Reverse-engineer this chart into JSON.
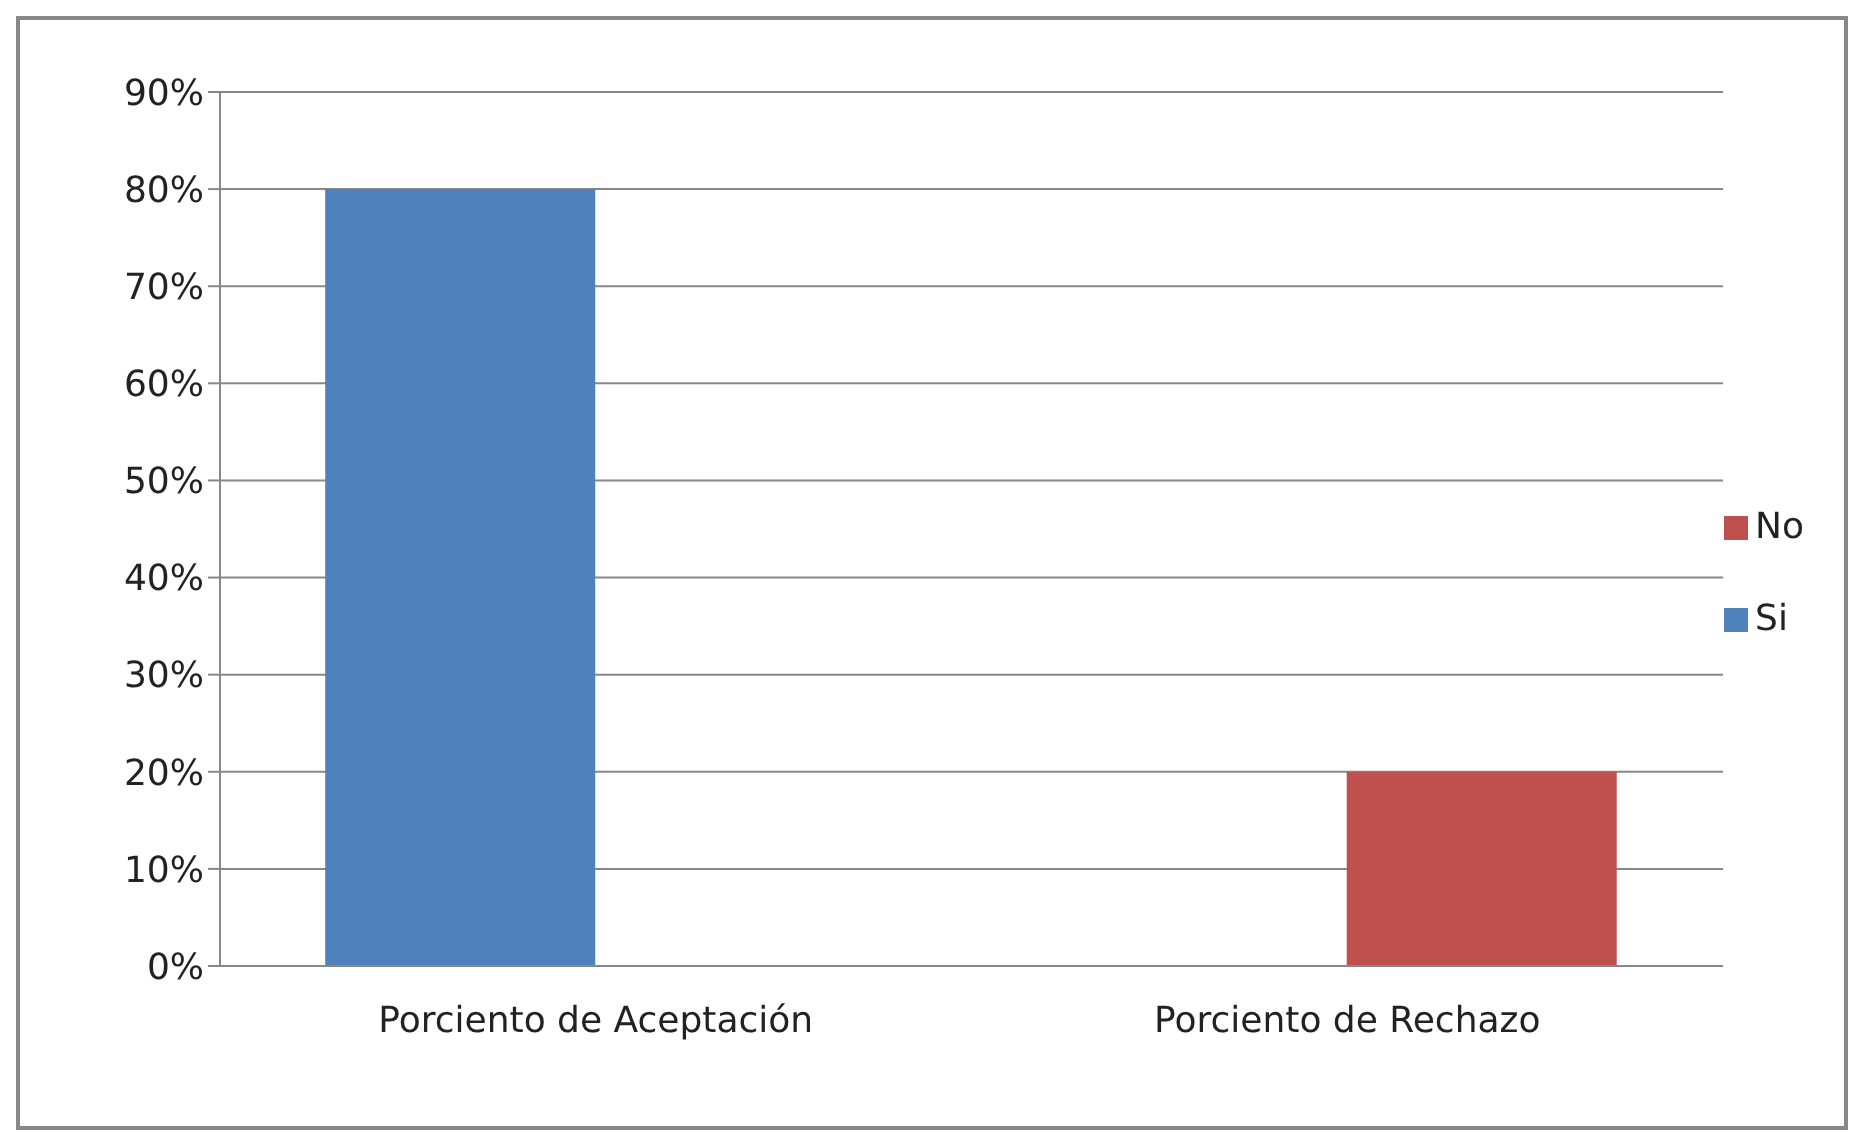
{
  "chart_data": {
    "type": "bar",
    "categories": [
      "Porciento de Aceptación",
      "Porciento de Rechazo"
    ],
    "series": [
      {
        "name": "Si",
        "color": "#4f81bd",
        "values": [
          80,
          null
        ]
      },
      {
        "name": "No",
        "color": "#c0504d",
        "values": [
          null,
          20
        ]
      }
    ],
    "ylim": [
      0,
      90
    ],
    "yticks": [
      {
        "value": 0,
        "label": "0%"
      },
      {
        "value": 10,
        "label": "10%"
      },
      {
        "value": 20,
        "label": "20%"
      },
      {
        "value": 30,
        "label": "30%"
      },
      {
        "value": 40,
        "label": "40%"
      },
      {
        "value": 50,
        "label": "50%"
      },
      {
        "value": 60,
        "label": "60%"
      },
      {
        "value": 70,
        "label": "70%"
      },
      {
        "value": 80,
        "label": "80%"
      },
      {
        "value": 90,
        "label": "90%"
      }
    ],
    "grid": "y",
    "legend": "right"
  }
}
